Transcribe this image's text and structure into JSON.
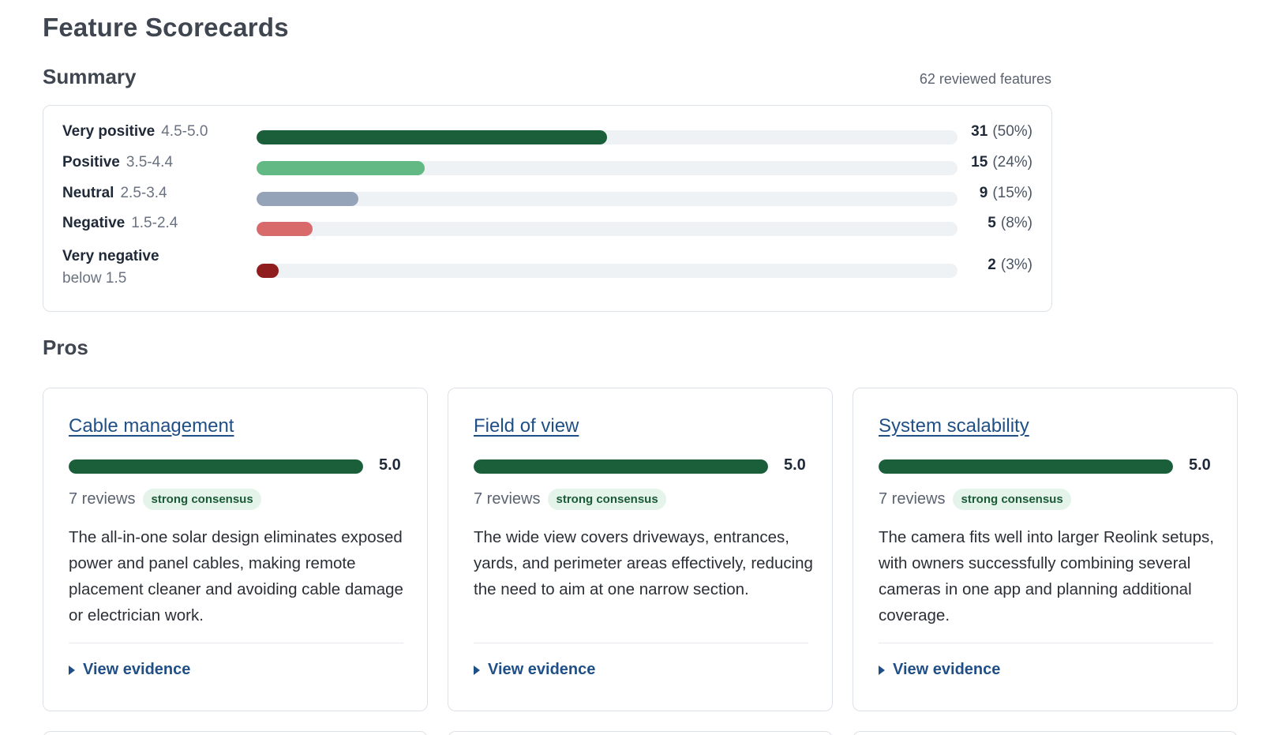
{
  "page": {
    "title": "Feature Scorecards"
  },
  "summary": {
    "title": "Summary",
    "count_label": "62 reviewed features",
    "rows": [
      {
        "name": "Very positive",
        "range": "4.5-5.0",
        "count": "31",
        "percent": "(50%)",
        "fraction": 0.5,
        "color": "#1a5f3a"
      },
      {
        "name": "Positive",
        "range": "3.5-4.4",
        "count": "15",
        "percent": "(24%)",
        "fraction": 0.24,
        "color": "#62b983"
      },
      {
        "name": "Neutral",
        "range": "2.5-3.4",
        "count": "9",
        "percent": "(15%)",
        "fraction": 0.145,
        "color": "#95a3b8"
      },
      {
        "name": "Negative",
        "range": "1.5-2.4",
        "count": "5",
        "percent": "(8%)",
        "fraction": 0.08,
        "color": "#d96a6c"
      },
      {
        "name": "Very negative",
        "range": "below 1.5",
        "count": "2",
        "percent": "(3%)",
        "fraction": 0.032,
        "color": "#8f1d1d"
      }
    ]
  },
  "pros": {
    "title": "Pros",
    "cards": [
      {
        "title": "Cable management",
        "score": "5.0",
        "score_fraction": 1.0,
        "reviews": "7 reviews",
        "consensus": "strong consensus",
        "description": "The all-in-one solar design eliminates exposed power and panel cables, making remote placement cleaner and avoiding cable damage or electrician work.",
        "evidence_label": "View evidence"
      },
      {
        "title": "Field of view",
        "score": "5.0",
        "score_fraction": 1.0,
        "reviews": "7 reviews",
        "consensus": "strong consensus",
        "description": "The wide view covers driveways, entrances, yards, and perimeter areas effectively, reducing the need to aim at one narrow section.",
        "evidence_label": "View evidence"
      },
      {
        "title": "System scalability",
        "score": "5.0",
        "score_fraction": 1.0,
        "reviews": "7 reviews",
        "consensus": "strong consensus",
        "description": "The camera fits well into larger Reolink setups, with owners successfully combining several cameras in one app and planning additional coverage.",
        "evidence_label": "View evidence"
      }
    ]
  },
  "colors": {
    "accent_link": "#1f4f86",
    "score_bar": "#1a5f3a",
    "consensus_bg": "#e5f4ea",
    "consensus_text": "#1a5a36"
  }
}
